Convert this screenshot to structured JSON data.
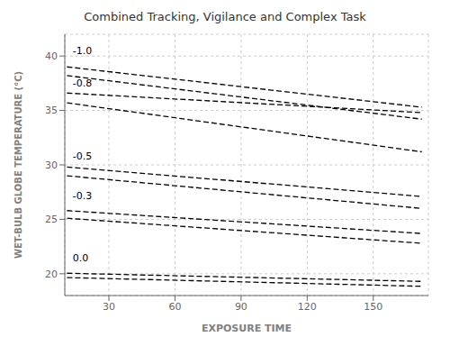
{
  "chart_data": {
    "type": "line",
    "title": "Combined Tracking, Vigilance and Complex Task",
    "xlabel": "EXPOSURE TIME",
    "ylabel": "WET-BULB GLOBE TEMPERATURE (°C)",
    "xlim": [
      10,
      175
    ],
    "ylim": [
      18,
      42
    ],
    "xticks": [
      30,
      60,
      90,
      120,
      150
    ],
    "yticks": [
      20,
      25,
      30,
      35,
      40
    ],
    "grid": true,
    "color": "#000000",
    "line_style": "dashed",
    "series": [
      {
        "x": [
          11,
          172
        ],
        "values": [
          39.0,
          35.3
        ]
      },
      {
        "x": [
          11,
          172
        ],
        "values": [
          38.2,
          34.2
        ]
      },
      {
        "x": [
          11,
          172
        ],
        "values": [
          36.6,
          34.8
        ]
      },
      {
        "x": [
          11,
          172
        ],
        "values": [
          35.7,
          31.2
        ]
      },
      {
        "x": [
          11,
          172
        ],
        "values": [
          29.8,
          27.1
        ]
      },
      {
        "x": [
          11,
          172
        ],
        "values": [
          29.0,
          26.0
        ]
      },
      {
        "x": [
          11,
          172
        ],
        "values": [
          25.8,
          23.7
        ]
      },
      {
        "x": [
          11,
          172
        ],
        "values": [
          25.1,
          22.8
        ]
      },
      {
        "x": [
          11,
          172
        ],
        "values": [
          20.05,
          19.3
        ]
      },
      {
        "x": [
          11,
          172
        ],
        "values": [
          19.65,
          18.85
        ]
      }
    ],
    "annotations": [
      {
        "text": "-1.0",
        "x": 11.5,
        "y": 40.5
      },
      {
        "text": "-0.8",
        "x": 11.5,
        "y": 37.5
      },
      {
        "text": "-0.5",
        "x": 11.5,
        "y": 30.8
      },
      {
        "text": "-0.3",
        "x": 11.5,
        "y": 27.2
      },
      {
        "text": "0.0",
        "x": 11.5,
        "y": 21.5
      }
    ]
  }
}
